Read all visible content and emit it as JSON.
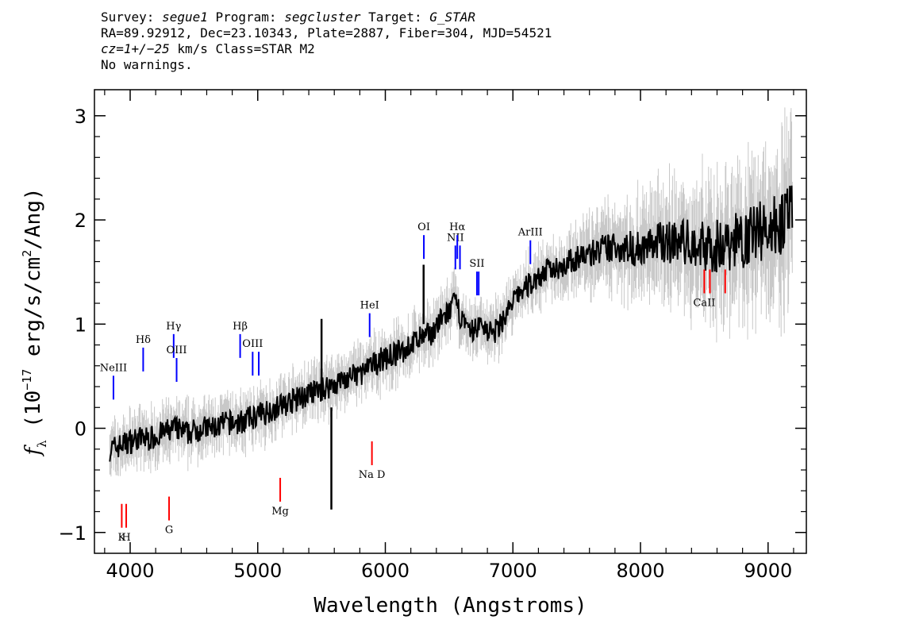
{
  "header": {
    "line1": {
      "survey_label": "Survey: ",
      "survey": "segue1",
      "program_label": " Program: ",
      "program": "segcluster",
      "target_label": " Target: ",
      "target": "G_STAR"
    },
    "line2": "RA=89.92912, Dec=23.10343, Plate=2887, Fiber=304, MJD=54521",
    "line3": {
      "cz": "cz=1+/−25",
      "cz_units": " km/s Class=STAR M2"
    },
    "line4": "No warnings."
  },
  "colors": {
    "error_band": "#c8c8c8",
    "flux": "#000000",
    "emission_lines": "#0000ff",
    "absorption_lines": "#ff0000"
  },
  "chart_data": {
    "type": "line",
    "xlabel": "Wavelength (Angstroms)",
    "ylabel_parts": {
      "f": "f",
      "sub": "λ",
      "pre": " (10",
      "exp1": "−17",
      "mid": " erg/s/cm",
      "exp2": "2",
      "post": "/Ang)"
    },
    "xlim": [
      3720,
      9300
    ],
    "ylim": [
      -1.2,
      3.25
    ],
    "x_ticks": [
      4000,
      5000,
      6000,
      7000,
      8000,
      9000
    ],
    "y_ticks": [
      -1,
      0,
      1,
      2,
      3
    ],
    "x_ticklabels": [
      "4000",
      "5000",
      "6000",
      "7000",
      "8000",
      "9000"
    ],
    "y_ticklabels": [
      "−1",
      "0",
      "1",
      "2",
      "3"
    ],
    "flux_x": [
      3850,
      3950,
      4050,
      4150,
      4250,
      4350,
      4450,
      4550,
      4650,
      4750,
      4850,
      4950,
      5050,
      5150,
      5250,
      5350,
      5450,
      5550,
      5650,
      5750,
      5850,
      5950,
      6050,
      6150,
      6250,
      6350,
      6450,
      6550,
      6650,
      6750,
      6850,
      6950,
      7050,
      7150,
      7250,
      7350,
      7450,
      7550,
      7650,
      7750,
      7850,
      7950,
      8050,
      8150,
      8250,
      8350,
      8450,
      8550,
      8650,
      8750,
      8850,
      8950,
      9050,
      9150
    ],
    "flux_y": [
      -0.2,
      -0.15,
      -0.1,
      -0.1,
      -0.05,
      0.0,
      -0.05,
      0.0,
      0.0,
      0.05,
      0.05,
      0.1,
      0.15,
      0.2,
      0.25,
      0.3,
      0.35,
      0.4,
      0.45,
      0.5,
      0.55,
      0.65,
      0.7,
      0.75,
      0.85,
      0.9,
      1.05,
      1.2,
      0.9,
      1.0,
      0.9,
      1.1,
      1.3,
      1.4,
      1.5,
      1.55,
      1.6,
      1.65,
      1.7,
      1.72,
      1.75,
      1.72,
      1.75,
      1.78,
      1.8,
      1.78,
      1.75,
      1.75,
      1.75,
      1.8,
      1.85,
      1.9,
      1.95,
      2.0
    ],
    "flux_spikes": [
      {
        "x": 5500,
        "y0": 0.3,
        "y1": 1.05
      },
      {
        "x": 5577,
        "y0": 0.2,
        "y1": -0.78
      },
      {
        "x": 6300,
        "y0": 1.0,
        "y1": 1.57
      }
    ],
    "emission_lines": [
      {
        "label": "NeIII",
        "wavelength": 3869,
        "y_label": 0.55
      },
      {
        "label": "Hδ",
        "wavelength": 4102,
        "y_label": 0.82
      },
      {
        "label": "Hγ",
        "wavelength": 4341,
        "y_label": 0.95
      },
      {
        "label": "OIII",
        "wavelength": 4364,
        "y_label": 0.72
      },
      {
        "label": "Hβ",
        "wavelength": 4862,
        "y_label": 0.95
      },
      {
        "label": "OIII",
        "wavelength": 4960,
        "y_label": 0.78
      },
      {
        "label": "OIII",
        "wavelength": 5008,
        "y_label": 0.78
      },
      {
        "label": "HeI",
        "wavelength": 5877,
        "y_label": 1.15
      },
      {
        "label": "OI",
        "wavelength": 6302,
        "y_label": 1.9
      },
      {
        "label": "NII",
        "wavelength": 6549,
        "y_label": 1.8
      },
      {
        "label": "Hα",
        "wavelength": 6564,
        "y_label": 1.9
      },
      {
        "label": "NII",
        "wavelength": 6585,
        "y_label": 1.8
      },
      {
        "label": "SII",
        "wavelength": 6718,
        "y_label": 1.55
      },
      {
        "label": "SII",
        "wavelength": 6732,
        "y_label": 1.55
      },
      {
        "label": "ArIII",
        "wavelength": 7137,
        "y_label": 1.85
      }
    ],
    "absorption_lines": [
      {
        "label": "K",
        "wavelength": 3934,
        "y_label": -1.0
      },
      {
        "label": "H",
        "wavelength": 3969,
        "y_label": -1.0
      },
      {
        "label": "G",
        "wavelength": 4305,
        "y_label": -0.93
      },
      {
        "label": "Mg",
        "wavelength": 5176,
        "y_label": -0.75
      },
      {
        "label": "Na D",
        "wavelength": 5895,
        "y_label": -0.4
      },
      {
        "label": "CaII",
        "wavelength": 8500,
        "y_label": 1.25
      },
      {
        "label": "CaII",
        "wavelength": 8544,
        "y_label": 1.25
      },
      {
        "label": "CaII",
        "wavelength": 8664,
        "y_label": 1.25
      }
    ]
  }
}
